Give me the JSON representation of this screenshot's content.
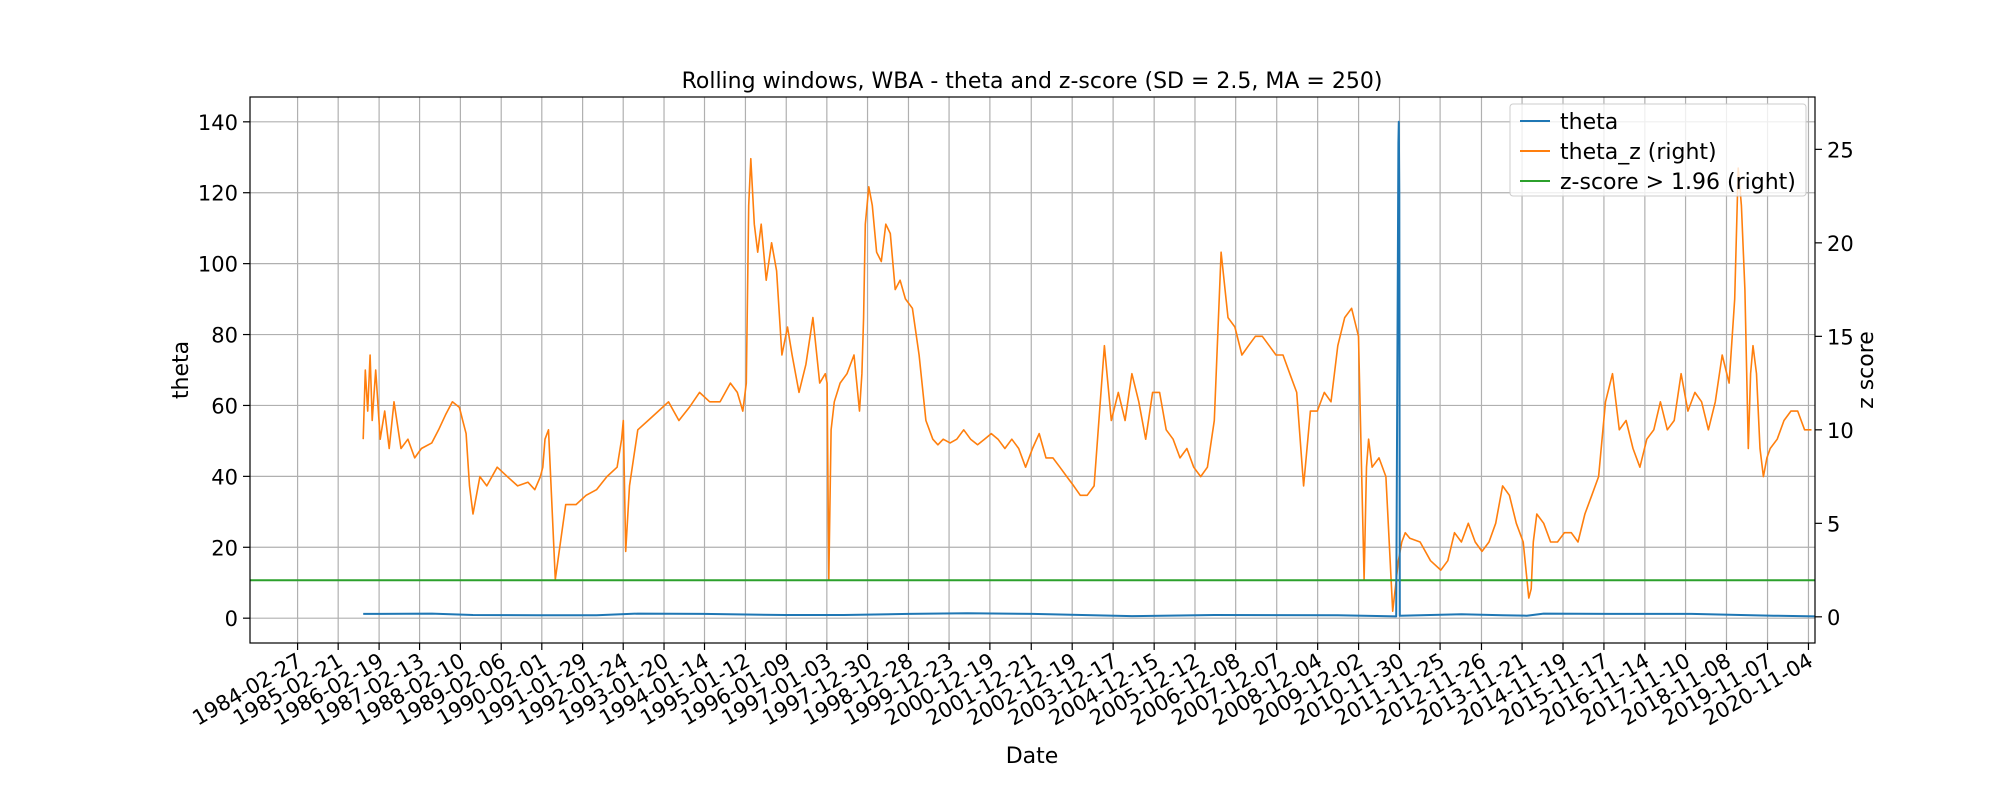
{
  "chart_data": {
    "type": "line",
    "title": "Rolling windows, WBA - theta and z-score (SD = 2.5, MA = 250)",
    "xlabel": "Date",
    "ylabel": "theta",
    "ylabel_right": "z score",
    "x_ticks": [
      "1984-02-27",
      "1985-02-21",
      "1986-02-19",
      "1987-02-13",
      "1988-02-10",
      "1989-02-06",
      "1990-02-01",
      "1991-01-29",
      "1992-01-24",
      "1993-01-20",
      "1994-01-14",
      "1995-01-12",
      "1996-01-09",
      "1997-01-03",
      "1997-12-30",
      "1998-12-28",
      "1999-12-23",
      "2000-12-19",
      "2001-12-21",
      "2002-12-19",
      "2003-12-17",
      "2004-12-15",
      "2005-12-12",
      "2006-12-08",
      "2007-12-07",
      "2008-12-04",
      "2009-12-02",
      "2010-11-30",
      "2011-11-25",
      "2012-11-26",
      "2013-11-21",
      "2014-11-19",
      "2015-11-17",
      "2016-11-14",
      "2017-11-10",
      "2018-11-08",
      "2019-11-07",
      "2020-11-04"
    ],
    "xlim": [
      "1983-01-01",
      "2021-01-01"
    ],
    "ylim_left": [
      -7,
      147
    ],
    "ylim_right": [
      -1.4,
      27.8
    ],
    "yticks_left": [
      0,
      20,
      40,
      60,
      80,
      100,
      120,
      140
    ],
    "yticks_right": [
      0,
      5,
      10,
      15,
      20,
      25
    ],
    "grid": true,
    "legend_position": "top-right",
    "series": [
      {
        "name": "theta",
        "axis": "left",
        "color": "#1f77b4",
        "x": [
          "1985-10-01",
          "1987-06-01",
          "1988-06-01",
          "1990-01-01",
          "1991-06-01",
          "1992-06-01",
          "1994-01-01",
          "1996-01-01",
          "1997-06-01",
          "1999-01-01",
          "2000-06-01",
          "2002-01-01",
          "2004-06-01",
          "2006-06-01",
          "2009-06-01",
          "2010-11-01",
          "2010-11-20",
          "2010-11-24",
          "2010-11-28",
          "2010-12-03",
          "2011-06-01",
          "2012-06-01",
          "2013-06-01",
          "2014-01-01",
          "2014-06-01",
          "2016-01-01",
          "2018-01-01",
          "2020-01-01",
          "2021-01-01"
        ],
        "y": [
          1.2,
          1.3,
          0.9,
          0.8,
          0.8,
          1.3,
          1.2,
          0.9,
          0.9,
          1.2,
          1.4,
          1.2,
          0.6,
          0.9,
          0.8,
          0.5,
          134,
          140,
          120,
          0.7,
          0.8,
          1.1,
          0.8,
          0.7,
          1.3,
          1.2,
          1.2,
          0.7,
          0.5
        ]
      },
      {
        "name": "theta_z (right)",
        "axis": "right",
        "color": "#ff7f0e",
        "x": [
          "1985-10-01",
          "1985-10-20",
          "1985-11-10",
          "1985-12-01",
          "1985-12-20",
          "1986-01-20",
          "1986-03-01",
          "1986-04-10",
          "1986-05-20",
          "1986-07-01",
          "1986-09-01",
          "1986-11-01",
          "1987-01-01",
          "1987-03-01",
          "1987-06-01",
          "1987-08-01",
          "1987-10-01",
          "1987-12-01",
          "1988-02-01",
          "1988-03-01",
          "1988-04-01",
          "1988-05-01",
          "1988-06-01",
          "1988-08-01",
          "1988-10-01",
          "1989-01-01",
          "1989-04-01",
          "1989-07-01",
          "1989-10-01",
          "1989-12-01",
          "1990-01-20",
          "1990-02-10",
          "1990-03-01",
          "1990-04-01",
          "1990-06-01",
          "1990-09-01",
          "1990-12-01",
          "1991-03-01",
          "1991-06-01",
          "1991-09-01",
          "1991-12-01",
          "1992-01-10",
          "1992-01-25",
          "1992-02-15",
          "1992-03-20",
          "1992-06-01",
          "1992-09-01",
          "1992-12-01",
          "1993-03-01",
          "1993-06-01",
          "1993-09-01",
          "1993-12-01",
          "1994-03-01",
          "1994-06-01",
          "1994-09-01",
          "1994-11-01",
          "1994-12-20",
          "1995-01-20",
          "1995-02-10",
          "1995-03-01",
          "1995-04-01",
          "1995-05-01",
          "1995-06-01",
          "1995-07-15",
          "1995-09-01",
          "1995-10-15",
          "1995-12-01",
          "1996-01-20",
          "1996-03-01",
          "1996-05-01",
          "1996-07-01",
          "1996-09-01",
          "1996-11-01",
          "1996-12-20",
          "1997-01-05",
          "1997-01-20",
          "1997-02-10",
          "1997-03-10",
          "1997-05-01",
          "1997-07-01",
          "1997-09-01",
          "1997-10-20",
          "1997-11-10",
          "1997-11-25",
          "1997-12-10",
          "1998-01-10",
          "1998-02-10",
          "1998-03-20",
          "1998-05-01",
          "1998-06-10",
          "1998-07-20",
          "1998-09-01",
          "1998-10-15",
          "1998-12-01",
          "1999-02-01",
          "1999-04-01",
          "1999-06-01",
          "1999-08-01",
          "1999-09-15",
          "1999-11-01",
          "2000-01-01",
          "2000-03-01",
          "2000-05-01",
          "2000-07-01",
          "2000-09-01",
          "2000-11-01",
          "2001-01-01",
          "2001-03-01",
          "2001-05-01",
          "2001-07-01",
          "2001-09-01",
          "2001-11-01",
          "2002-01-01",
          "2002-03-01",
          "2002-05-01",
          "2002-07-01",
          "2002-09-01",
          "2002-11-01",
          "2003-01-01",
          "2003-03-01",
          "2003-05-01",
          "2003-07-01",
          "2003-10-01",
          "2003-12-01",
          "2004-02-01",
          "2004-04-01",
          "2004-06-01",
          "2004-08-01",
          "2004-10-01",
          "2004-12-01",
          "2005-02-01",
          "2005-04-01",
          "2005-06-01",
          "2005-08-01",
          "2005-10-01",
          "2005-12-01",
          "2006-02-01",
          "2006-04-01",
          "2006-06-01",
          "2006-08-01",
          "2006-10-01",
          "2006-12-01",
          "2007-02-01",
          "2007-04-01",
          "2007-06-01",
          "2007-08-01",
          "2007-10-01",
          "2007-12-01",
          "2008-02-01",
          "2008-04-01",
          "2008-06-01",
          "2008-08-01",
          "2008-10-01",
          "2008-12-01",
          "2009-02-01",
          "2009-04-01",
          "2009-06-01",
          "2009-08-01",
          "2009-10-01",
          "2009-12-01",
          "2010-01-20",
          "2010-02-10",
          "2010-03-01",
          "2010-04-01",
          "2010-06-01",
          "2010-08-01",
          "2010-10-01",
          "2010-11-20",
          "2010-12-20",
          "2011-01-20",
          "2011-03-01",
          "2011-06-01",
          "2011-09-01",
          "2011-12-01",
          "2012-02-01",
          "2012-04-01",
          "2012-06-01",
          "2012-08-01",
          "2012-10-01",
          "2012-12-01",
          "2013-02-01",
          "2013-04-01",
          "2013-06-01",
          "2013-08-01",
          "2013-10-01",
          "2013-12-01",
          "2014-01-20",
          "2014-02-10",
          "2014-03-01",
          "2014-04-01",
          "2014-06-01",
          "2014-08-01",
          "2014-10-01",
          "2014-12-01",
          "2015-02-01",
          "2015-04-01",
          "2015-06-01",
          "2015-08-01",
          "2015-10-01",
          "2015-12-01",
          "2016-02-01",
          "2016-04-01",
          "2016-06-01",
          "2016-08-01",
          "2016-10-01",
          "2016-12-01",
          "2017-02-01",
          "2017-04-01",
          "2017-06-01",
          "2017-08-01",
          "2017-10-01",
          "2017-12-01",
          "2018-02-01",
          "2018-04-01",
          "2018-06-01",
          "2018-08-01",
          "2018-10-01",
          "2018-12-01",
          "2019-01-20",
          "2019-02-20",
          "2019-03-20",
          "2019-04-20",
          "2019-05-20",
          "2019-06-10",
          "2019-07-01",
          "2019-08-01",
          "2019-09-01",
          "2019-10-01",
          "2019-11-01",
          "2019-12-01",
          "2020-02-01",
          "2020-04-01",
          "2020-06-01",
          "2020-08-01",
          "2020-10-01",
          "2020-12-01"
        ],
        "y": [
          9.5,
          13.2,
          11.0,
          14.0,
          10.5,
          13.2,
          9.5,
          11.0,
          9.0,
          11.5,
          9.0,
          9.5,
          8.5,
          9.0,
          9.3,
          10.0,
          10.8,
          11.5,
          11.2,
          10.5,
          9.8,
          7.0,
          5.5,
          7.5,
          7.0,
          8.0,
          7.5,
          7.0,
          7.2,
          6.8,
          7.5,
          8.0,
          9.5,
          10.0,
          2.0,
          6.0,
          6.0,
          6.5,
          6.8,
          7.5,
          8.0,
          9.5,
          10.5,
          3.5,
          7.0,
          10.0,
          10.5,
          11.0,
          11.5,
          10.5,
          11.2,
          12.0,
          11.5,
          11.5,
          12.5,
          12.0,
          11.0,
          12.5,
          22.0,
          24.5,
          21.0,
          19.5,
          21.0,
          18.0,
          20.0,
          18.5,
          14.0,
          15.5,
          14.0,
          12.0,
          13.5,
          16.0,
          12.5,
          13.0,
          12.5,
          2.0,
          10.0,
          11.5,
          12.5,
          13.0,
          14.0,
          11.0,
          13.0,
          16.0,
          21.0,
          23.0,
          22.0,
          19.5,
          19.0,
          21.0,
          20.5,
          17.5,
          18.0,
          17.0,
          16.5,
          14.0,
          10.5,
          9.5,
          9.2,
          9.5,
          9.3,
          9.5,
          10.0,
          9.5,
          9.2,
          9.5,
          9.8,
          9.5,
          9.0,
          9.5,
          9.0,
          8.0,
          9.0,
          9.8,
          8.5,
          8.5,
          8.0,
          7.5,
          7.0,
          6.5,
          6.5,
          7.0,
          14.5,
          10.5,
          12.0,
          10.5,
          13.0,
          11.5,
          9.5,
          12.0,
          12.0,
          10.0,
          9.5,
          8.5,
          9.0,
          8.0,
          7.5,
          8.0,
          10.5,
          19.5,
          16.0,
          15.5,
          14.0,
          14.5,
          15.0,
          15.0,
          14.5,
          14.0,
          14.0,
          13.0,
          12.0,
          7.0,
          11.0,
          11.0,
          12.0,
          11.5,
          14.5,
          16.0,
          16.5,
          15.0,
          2.0,
          8.0,
          9.5,
          8.0,
          8.5,
          7.5,
          0.3,
          3.0,
          4.0,
          4.5,
          4.2,
          4.0,
          3.0,
          2.5,
          3.0,
          4.5,
          4.0,
          5.0,
          4.0,
          3.5,
          4.0,
          5.0,
          7.0,
          6.5,
          5.0,
          4.0,
          1.0,
          1.5,
          4.0,
          5.5,
          5.0,
          4.0,
          4.0,
          4.5,
          4.5,
          4.0,
          5.5,
          6.5,
          7.5,
          11.5,
          13.0,
          10.0,
          10.5,
          9.0,
          8.0,
          9.5,
          10.0,
          11.5,
          10.0,
          10.5,
          13.0,
          11.0,
          12.0,
          11.5,
          10.0,
          11.5,
          14.0,
          12.5,
          17.0,
          24.0,
          22.0,
          17.5,
          9.0,
          13.0,
          14.5,
          13.0,
          9.0,
          7.5,
          8.5,
          9.0,
          9.5,
          10.5,
          11.0,
          11.0,
          10.0,
          10.0
        ]
      },
      {
        "name": "z-score > 1.96 (right)",
        "axis": "right",
        "color": "#2ca02c",
        "x": [
          "1983-01-01",
          "2021-01-01"
        ],
        "y": [
          1.96,
          1.96
        ]
      }
    ]
  }
}
